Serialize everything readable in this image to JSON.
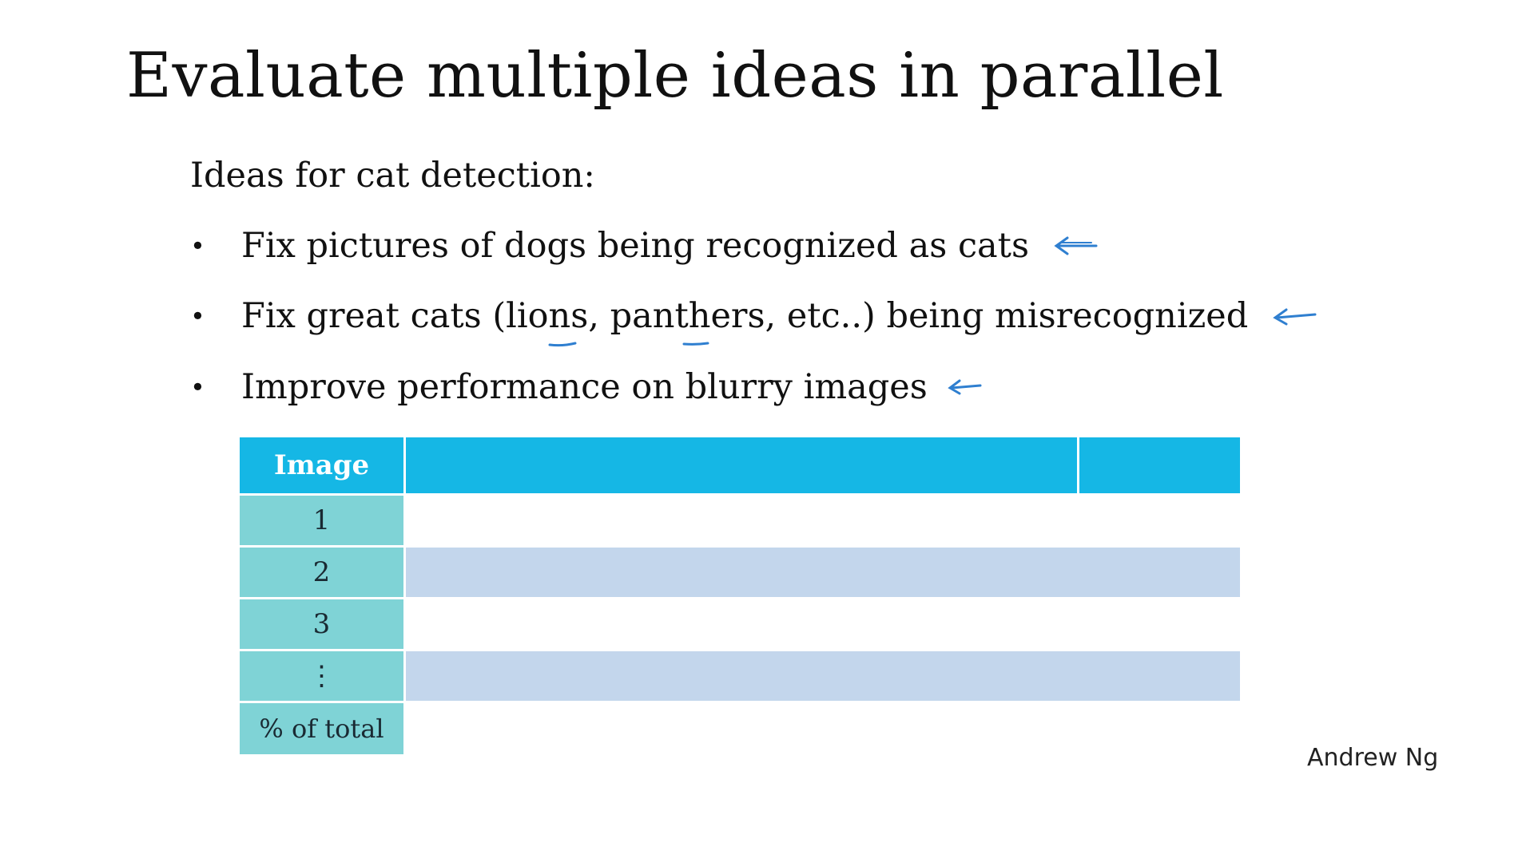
{
  "slide": {
    "title": "Evaluate multiple ideas in parallel",
    "subtitle": "Ideas for cat detection:",
    "bullets": [
      {
        "text": "Fix pictures of dogs being recognized as cats",
        "marker": "•"
      },
      {
        "text": "Fix great cats (lions, panthers, etc..) being misrecognized",
        "marker": "•"
      },
      {
        "text": "Improve performance on blurry images",
        "marker": "•"
      }
    ],
    "annotation_color": "#2f7fd0",
    "author": "Andrew Ng"
  },
  "table": {
    "header": "Image",
    "rows": [
      "1",
      "2",
      "3",
      "⋮"
    ],
    "footer": "% of total",
    "colors": {
      "header": "#15b7e5",
      "label_cell": "#7fd3d6",
      "shaded_row": "#c3d6ec"
    }
  }
}
